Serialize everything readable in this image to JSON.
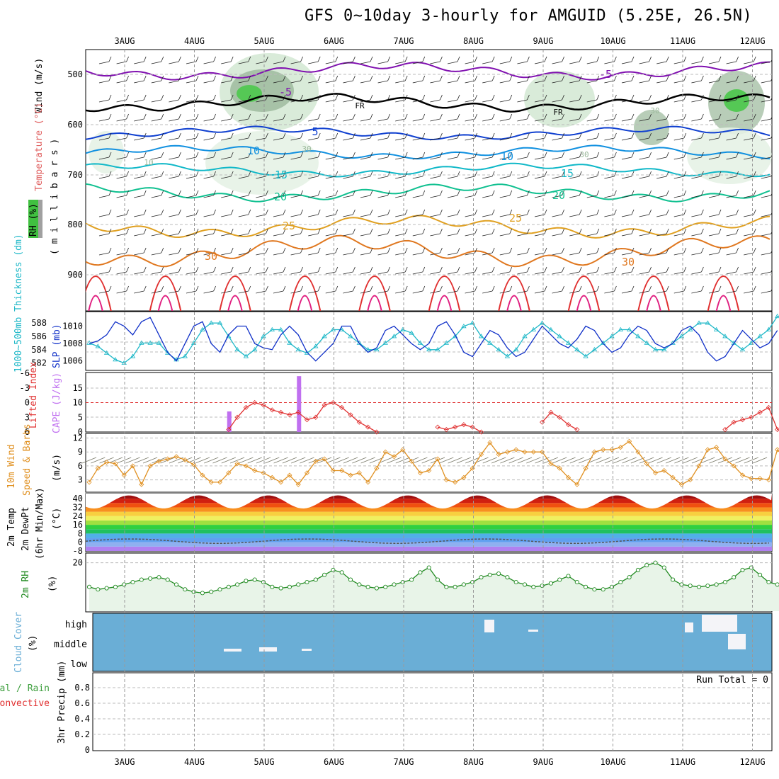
{
  "header": {
    "title": "GFS 0~10day 3-hourly for AMGUID (5.25E, 26.5N)"
  },
  "dates": [
    "3AUG",
    "4AUG",
    "5AUG",
    "6AUG",
    "7AUG",
    "8AUG",
    "9AUG",
    "10AUG",
    "11AUG",
    "12AUG"
  ],
  "panels": {
    "upper": {
      "labels": {
        "wind": "Wind (m/s)",
        "temperature": "Temperature (°C)",
        "rh": "RH (%)",
        "millibars": "( m i l l i b a r s )"
      },
      "pressure_ticks": [
        "500",
        "600",
        "700",
        "800",
        "900"
      ],
      "contour_labels": [
        "-5",
        "-5",
        "FR",
        "FR",
        "5",
        "10",
        "10",
        "15",
        "15",
        "20",
        "20",
        "25",
        "25",
        "30",
        "30",
        "10",
        "30",
        "30",
        "30"
      ]
    },
    "thickness": {
      "label_left": "1000~500mb Thickness (dm)",
      "label_right": "SLP (mb)",
      "left_ticks": [
        "588",
        "586",
        "584",
        "582"
      ],
      "right_ticks": [
        "1010",
        "1008",
        "1006"
      ]
    },
    "cape": {
      "label_left": "Lifted Index",
      "label_right": "CAPE (J/kg)",
      "left_ticks": [
        "-6",
        "-3",
        "0",
        "3",
        "6"
      ],
      "right_ticks": [
        "15",
        "10",
        "5",
        "0"
      ]
    },
    "wind10m": {
      "label_left": "10m Wind",
      "label_mid": "Speed & Barbs",
      "label_right": "(m/s)",
      "ticks": [
        "12",
        "9",
        "6",
        "3"
      ]
    },
    "temp2m": {
      "labels": [
        "2m Temp",
        "2m DewPt",
        "(6hr Min/Max)",
        "(°C)"
      ],
      "ticks": [
        "40",
        "32",
        "24",
        "16",
        "8",
        "0",
        "-8"
      ]
    },
    "rh2m": {
      "labels": [
        "2m RH",
        "(%)"
      ],
      "ticks": [
        "20"
      ]
    },
    "cloud": {
      "labels": [
        "Cloud Cover",
        "(%)"
      ],
      "levels": [
        "high",
        "middle",
        "low"
      ]
    },
    "precip": {
      "labels": [
        "Total / Rain",
        "Convective",
        "3hr Precip (mm)"
      ],
      "ticks": [
        "0.8",
        "0.6",
        "0.4",
        "0.2",
        "0"
      ],
      "run_total": "Run Total = 0"
    }
  },
  "colors": {
    "thickness": "#1fb8c8",
    "slp": "#1030c8",
    "lifted_index": "#e03030",
    "cape": "#c070f0",
    "wind_speed": "#e09020",
    "rh2m": "#208a20",
    "cloud": "#6aaed6",
    "temp_violet": "#8010b0",
    "freezing": "#000000"
  },
  "chart_data": [
    {
      "type": "line",
      "title": "1000~500mb Thickness (dm) / SLP (mb)",
      "series": [
        {
          "name": "1000~500mb Thickness (dm)",
          "values": [
            585,
            584.5,
            583.5,
            582.5,
            582,
            583,
            585,
            585,
            585,
            583.5,
            582.5,
            583,
            585,
            587,
            588,
            588,
            586,
            584,
            583,
            584,
            586,
            587,
            587,
            585,
            584,
            583.5,
            584.5,
            586,
            587,
            587,
            586,
            585,
            584,
            584,
            585,
            586,
            587,
            586.5,
            585,
            584,
            584,
            585,
            586,
            587.5,
            588,
            586,
            585,
            584,
            583,
            584,
            586,
            587,
            588,
            587,
            586,
            585,
            584,
            583,
            584,
            585,
            586,
            587,
            587,
            586,
            585,
            584,
            584,
            585,
            586,
            587,
            588,
            588,
            587,
            586,
            585,
            584,
            585,
            586,
            587,
            589,
            589,
            588,
            587,
            585.5,
            584.5
          ]
        },
        {
          "name": "SLP (mb)",
          "values": [
            1008,
            1008.3,
            1009,
            1010.5,
            1010,
            1009,
            1010.5,
            1011,
            1009,
            1007,
            1006,
            1008,
            1010,
            1010.5,
            1008,
            1007,
            1009,
            1010,
            1010,
            1008,
            1007.5,
            1007.3,
            1009,
            1010,
            1009,
            1007,
            1006,
            1007,
            1008,
            1010,
            1010,
            1008,
            1007,
            1007.5,
            1009.5,
            1010,
            1009,
            1008,
            1007.3,
            1008,
            1010,
            1010.5,
            1009,
            1007,
            1006.5,
            1008,
            1009.5,
            1009,
            1007.5,
            1006.5,
            1007,
            1008.5,
            1010,
            1009,
            1008,
            1007.5,
            1008.5,
            1010,
            1009.5,
            1008,
            1007,
            1007.5,
            1009,
            1010,
            1009.5,
            1008,
            1007.5,
            1008,
            1009.5,
            1010,
            1009,
            1007,
            1006,
            1006.5,
            1008,
            1009.5,
            1008.5,
            1007.5,
            1008,
            1009.5
          ]
        }
      ]
    },
    {
      "type": "line",
      "title": "Lifted Index / CAPE (J/kg)",
      "series": [
        {
          "name": "Lifted Index",
          "values": [
            null,
            null,
            null,
            null,
            null,
            null,
            null,
            null,
            null,
            null,
            null,
            null,
            null,
            null,
            null,
            null,
            5.5,
            3,
            1,
            0,
            0.5,
            1.5,
            2,
            2.5,
            2,
            3.5,
            3,
            0.5,
            0,
            1,
            2.5,
            4,
            5,
            6,
            null,
            null,
            null,
            null,
            null,
            null,
            5,
            5.5,
            5,
            4.5,
            5,
            6,
            null,
            null,
            null,
            null,
            null,
            null,
            4,
            2,
            3,
            4.5,
            5.5,
            null,
            null,
            null,
            null,
            null,
            null,
            null,
            null,
            null,
            null,
            null,
            null,
            null,
            null,
            null,
            null,
            5.5,
            4,
            3.5,
            3,
            2,
            1,
            5.5,
            6
          ]
        },
        {
          "name": "CAPE (J/kg)",
          "bars": [
            {
              "x": "4.5AUG",
              "value": 7
            },
            {
              "x": "5.5AUG",
              "value": 19
            }
          ]
        }
      ]
    },
    {
      "type": "line",
      "title": "10m Wind Speed (m/s)",
      "x_step_hours": 3,
      "values": [
        2.5,
        5.5,
        6.8,
        6.5,
        4,
        6,
        2,
        6,
        7,
        7.5,
        8,
        7.3,
        6.3,
        4,
        2.5,
        2.5,
        4.5,
        6.5,
        6,
        5,
        4.5,
        3.5,
        2.5,
        4,
        2,
        4.5,
        7,
        7.5,
        5,
        5,
        4,
        4.5,
        2.5,
        5.5,
        9,
        8,
        9.5,
        7,
        4.5,
        5,
        7.5,
        3,
        2.5,
        3.5,
        5.5,
        8.5,
        11,
        8.5,
        9,
        9.5,
        9,
        9,
        9,
        6.5,
        5.5,
        3.5,
        2,
        5.5,
        9,
        9.5,
        9.5,
        10,
        11.3,
        9,
        6.5,
        4.5,
        5,
        3.5,
        2,
        3,
        6,
        9.5,
        10,
        7.5,
        6,
        4,
        3.3,
        3.3,
        3,
        9.5,
        7.5,
        5.5,
        7,
        5,
        4.5,
        5,
        2.5,
        5.5,
        8.5,
        5.5,
        2.5,
        3,
        5.5
      ]
    },
    {
      "type": "area",
      "title": "2m Temp / 2m DewPt (°C)",
      "series": [
        {
          "name": "2m Temp",
          "min": 30,
          "max": 43
        },
        {
          "name": "2m DewPt",
          "min": -1,
          "max": 3
        }
      ],
      "ylim": [
        -8,
        44
      ]
    },
    {
      "type": "line",
      "title": "2m RH (%)",
      "values": [
        10,
        9,
        9.5,
        10,
        11,
        12,
        13,
        13.5,
        14,
        13,
        11,
        9,
        8,
        7.5,
        8,
        9,
        10,
        11,
        12.5,
        13,
        12,
        10,
        9.5,
        10,
        11,
        12,
        13,
        15,
        17,
        16,
        13,
        11,
        10,
        9.5,
        10,
        11,
        12,
        13,
        16,
        18,
        13,
        10,
        10,
        11,
        12,
        14,
        15,
        15.5,
        14,
        12,
        11,
        10,
        10.5,
        11.5,
        13,
        14.5,
        12,
        10,
        9,
        9,
        10,
        12,
        14,
        17,
        19,
        20,
        18,
        13,
        11,
        10.5,
        10,
        10.5,
        11,
        12,
        14,
        17,
        18,
        15,
        12,
        11,
        12,
        14,
        15.5,
        16,
        17,
        18,
        18.5
      ],
      "ylim": [
        0,
        24
      ]
    },
    {
      "type": "table",
      "title": "Cloud Cover (%)",
      "categories": [
        "high",
        "middle",
        "low"
      ]
    },
    {
      "type": "bar",
      "title": "3hr Precip (mm)",
      "values": [],
      "ylim": [
        0,
        1
      ]
    }
  ]
}
